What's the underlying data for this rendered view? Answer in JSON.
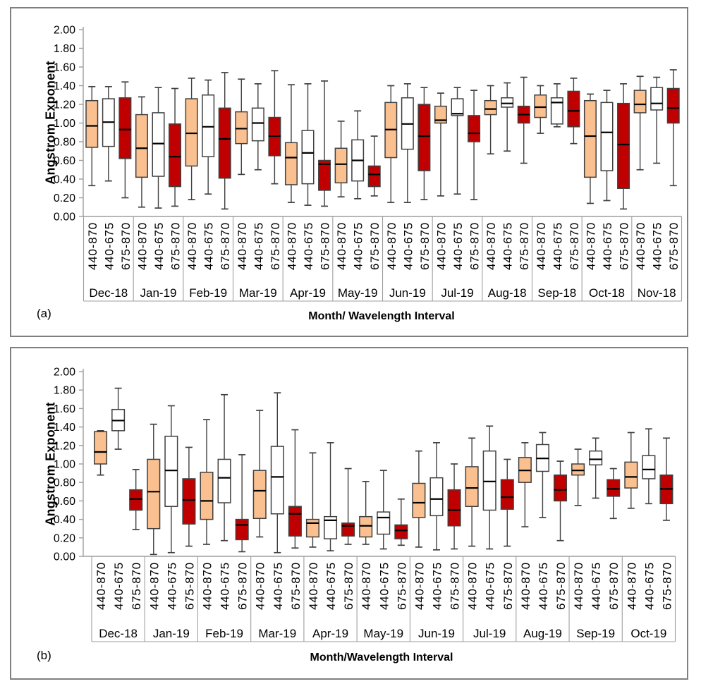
{
  "figure": {
    "background": "#FFFFFF",
    "panel_border": "#7F7F7F"
  },
  "colors": {
    "box_fill_440_870": "#FAC090",
    "box_fill_440_675": "#FFFFFF",
    "box_fill_675_870": "#C00000",
    "box_border": "#404040",
    "median_line": "#000000",
    "axis_line": "#9E9E9E",
    "text": "#000000"
  },
  "chart_data": [
    {
      "type": "boxplot",
      "panel_label": "(a)",
      "ylabel": "Angstrom Exponent",
      "xlabel": "Month/ Wavelength Interval",
      "ylim": [
        0,
        2
      ],
      "ytick_step": 0.2,
      "grid": "off",
      "yticks": [
        "2.00",
        "1.80",
        "1.60",
        "1.40",
        "1.20",
        "1.00",
        "0.80",
        "0.60",
        "0.40",
        "0.20",
        "0.00"
      ],
      "intervals": [
        "440-870",
        "440-675",
        "675-870"
      ],
      "months": [
        "Dec-18",
        "Jan-19",
        "Feb-19",
        "Mar-19",
        "Apr-19",
        "May-19",
        "Jun-19",
        "Jul-19",
        "Aug-18",
        "Sep-18",
        "Oct-18",
        "Nov-18"
      ],
      "boxes": [
        {
          "month": "Dec-18",
          "interval": "440-870",
          "low": 0.33,
          "q1": 0.74,
          "median": 0.97,
          "q3": 1.24,
          "high": 1.39
        },
        {
          "month": "Dec-18",
          "interval": "440-675",
          "low": 0.38,
          "q1": 0.75,
          "median": 1.01,
          "q3": 1.26,
          "high": 1.39
        },
        {
          "month": "Dec-18",
          "interval": "675-870",
          "low": 0.2,
          "q1": 0.62,
          "median": 0.93,
          "q3": 1.27,
          "high": 1.44
        },
        {
          "month": "Jan-19",
          "interval": "440-870",
          "low": 0.1,
          "q1": 0.42,
          "median": 0.73,
          "q3": 1.09,
          "high": 1.28
        },
        {
          "month": "Jan-19",
          "interval": "440-675",
          "low": 0.09,
          "q1": 0.43,
          "median": 0.78,
          "q3": 1.11,
          "high": 1.38
        },
        {
          "month": "Jan-19",
          "interval": "675-870",
          "low": 0.11,
          "q1": 0.32,
          "median": 0.64,
          "q3": 0.99,
          "high": 1.37
        },
        {
          "month": "Feb-19",
          "interval": "440-870",
          "low": 0.18,
          "q1": 0.54,
          "median": 0.89,
          "q3": 1.26,
          "high": 1.48
        },
        {
          "month": "Feb-19",
          "interval": "440-675",
          "low": 0.24,
          "q1": 0.64,
          "median": 0.96,
          "q3": 1.3,
          "high": 1.46
        },
        {
          "month": "Feb-19",
          "interval": "675-870",
          "low": 0.08,
          "q1": 0.41,
          "median": 0.83,
          "q3": 1.16,
          "high": 1.54
        },
        {
          "month": "Mar-19",
          "interval": "440-870",
          "low": 0.45,
          "q1": 0.78,
          "median": 0.94,
          "q3": 1.12,
          "high": 1.47
        },
        {
          "month": "Mar-19",
          "interval": "440-675",
          "low": 0.5,
          "q1": 0.81,
          "median": 1.0,
          "q3": 1.16,
          "high": 1.42
        },
        {
          "month": "Mar-19",
          "interval": "675-870",
          "low": 0.35,
          "q1": 0.65,
          "median": 0.86,
          "q3": 1.06,
          "high": 1.56
        },
        {
          "month": "Apr-19",
          "interval": "440-870",
          "low": 0.15,
          "q1": 0.34,
          "median": 0.63,
          "q3": 0.79,
          "high": 1.41
        },
        {
          "month": "Apr-19",
          "interval": "440-675",
          "low": 0.12,
          "q1": 0.35,
          "median": 0.68,
          "q3": 0.92,
          "high": 1.42
        },
        {
          "month": "Apr-19",
          "interval": "675-870",
          "low": 0.11,
          "q1": 0.28,
          "median": 0.56,
          "q3": 0.6,
          "high": 1.45
        },
        {
          "month": "May-19",
          "interval": "440-870",
          "low": 0.21,
          "q1": 0.36,
          "median": 0.56,
          "q3": 0.73,
          "high": 1.02
        },
        {
          "month": "May-19",
          "interval": "440-675",
          "low": 0.19,
          "q1": 0.38,
          "median": 0.6,
          "q3": 0.82,
          "high": 1.13
        },
        {
          "month": "May-19",
          "interval": "675-870",
          "low": 0.22,
          "q1": 0.32,
          "median": 0.45,
          "q3": 0.54,
          "high": 0.86
        },
        {
          "month": "Jun-19",
          "interval": "440-870",
          "low": 0.15,
          "q1": 0.63,
          "median": 0.93,
          "q3": 1.22,
          "high": 1.4
        },
        {
          "month": "Jun-19",
          "interval": "440-675",
          "low": 0.15,
          "q1": 0.72,
          "median": 0.99,
          "q3": 1.27,
          "high": 1.42
        },
        {
          "month": "Jun-19",
          "interval": "675-870",
          "low": 0.18,
          "q1": 0.49,
          "median": 0.86,
          "q3": 1.2,
          "high": 1.38
        },
        {
          "month": "Jul-19",
          "interval": "440-870",
          "low": 0.22,
          "q1": 1.0,
          "median": 1.03,
          "q3": 1.18,
          "high": 1.32
        },
        {
          "month": "Jul-19",
          "interval": "440-675",
          "low": 0.24,
          "q1": 1.08,
          "median": 1.1,
          "q3": 1.26,
          "high": 1.38
        },
        {
          "month": "Jul-19",
          "interval": "675-870",
          "low": 0.18,
          "q1": 0.8,
          "median": 0.89,
          "q3": 1.08,
          "high": 1.35
        },
        {
          "month": "Aug-18",
          "interval": "440-870",
          "low": 0.67,
          "q1": 1.09,
          "median": 1.15,
          "q3": 1.24,
          "high": 1.4
        },
        {
          "month": "Aug-18",
          "interval": "440-675",
          "low": 0.7,
          "q1": 1.17,
          "median": 1.21,
          "q3": 1.27,
          "high": 1.43
        },
        {
          "month": "Aug-18",
          "interval": "675-870",
          "low": 0.57,
          "q1": 1.0,
          "median": 1.09,
          "q3": 1.18,
          "high": 1.49
        },
        {
          "month": "Sep-18",
          "interval": "440-870",
          "low": 0.89,
          "q1": 1.06,
          "median": 1.17,
          "q3": 1.3,
          "high": 1.4
        },
        {
          "month": "Sep-18",
          "interval": "440-675",
          "low": 0.96,
          "q1": 0.99,
          "median": 1.22,
          "q3": 1.27,
          "high": 1.42
        },
        {
          "month": "Sep-18",
          "interval": "675-870",
          "low": 0.78,
          "q1": 0.96,
          "median": 1.13,
          "q3": 1.34,
          "high": 1.48
        },
        {
          "month": "Oct-18",
          "interval": "440-870",
          "low": 0.14,
          "q1": 0.42,
          "median": 0.86,
          "q3": 1.24,
          "high": 1.31
        },
        {
          "month": "Oct-18",
          "interval": "440-675",
          "low": 0.17,
          "q1": 0.49,
          "median": 0.9,
          "q3": 1.22,
          "high": 1.35
        },
        {
          "month": "Oct-18",
          "interval": "675-870",
          "low": 0.08,
          "q1": 0.3,
          "median": 0.77,
          "q3": 1.21,
          "high": 1.42
        },
        {
          "month": "Nov-18",
          "interval": "440-870",
          "low": 0.5,
          "q1": 1.11,
          "median": 1.2,
          "q3": 1.35,
          "high": 1.5
        },
        {
          "month": "Nov-18",
          "interval": "440-675",
          "low": 0.57,
          "q1": 1.14,
          "median": 1.21,
          "q3": 1.38,
          "high": 1.49
        },
        {
          "month": "Nov-18",
          "interval": "675-870",
          "low": 0.33,
          "q1": 1.0,
          "median": 1.16,
          "q3": 1.37,
          "high": 1.57
        }
      ]
    },
    {
      "type": "boxplot",
      "panel_label": "(b)",
      "ylabel": "Angstrom Exponent",
      "xlabel": "Month/Wavelength Interval",
      "ylim": [
        0,
        2
      ],
      "ytick_step": 0.2,
      "grid": "off",
      "yticks": [
        "2.00",
        "1.80",
        "1.60",
        "1.40",
        "1.20",
        "1.00",
        "0.80",
        "0.60",
        "0.40",
        "0.20",
        "0.00"
      ],
      "intervals": [
        "440-870",
        "440-675",
        "675-870"
      ],
      "months": [
        "Dec-18",
        "Jan-19",
        "Feb-19",
        "Mar-19",
        "Apr-19",
        "May-19",
        "Jun-19",
        "Jul-19",
        "Aug-19",
        "Sep-19",
        "Oct-19"
      ],
      "boxes": [
        {
          "month": "Dec-18",
          "interval": "440-870",
          "low": 0.88,
          "q1": 1.0,
          "median": 1.13,
          "q3": 1.35,
          "high": 1.36
        },
        {
          "month": "Dec-18",
          "interval": "440-675",
          "low": 1.16,
          "q1": 1.36,
          "median": 1.47,
          "q3": 1.59,
          "high": 1.82
        },
        {
          "month": "Dec-18",
          "interval": "675-870",
          "low": 0.29,
          "q1": 0.5,
          "median": 0.62,
          "q3": 0.72,
          "high": 0.94
        },
        {
          "month": "Jan-19",
          "interval": "440-870",
          "low": 0.02,
          "q1": 0.3,
          "median": 0.7,
          "q3": 1.05,
          "high": 1.43
        },
        {
          "month": "Jan-19",
          "interval": "440-675",
          "low": 0.04,
          "q1": 0.54,
          "median": 0.93,
          "q3": 1.3,
          "high": 1.63
        },
        {
          "month": "Jan-19",
          "interval": "675-870",
          "low": 0.11,
          "q1": 0.35,
          "median": 0.61,
          "q3": 0.84,
          "high": 1.18
        },
        {
          "month": "Feb-19",
          "interval": "440-870",
          "low": 0.13,
          "q1": 0.4,
          "median": 0.6,
          "q3": 0.91,
          "high": 1.48
        },
        {
          "month": "Feb-19",
          "interval": "440-675",
          "low": 0.17,
          "q1": 0.58,
          "median": 0.85,
          "q3": 1.05,
          "high": 1.75
        },
        {
          "month": "Feb-19",
          "interval": "675-870",
          "low": 0.05,
          "q1": 0.18,
          "median": 0.34,
          "q3": 0.4,
          "high": 1.1
        },
        {
          "month": "Mar-19",
          "interval": "440-870",
          "low": 0.21,
          "q1": 0.41,
          "median": 0.71,
          "q3": 0.93,
          "high": 1.58
        },
        {
          "month": "Mar-19",
          "interval": "440-675",
          "low": 0.04,
          "q1": 0.46,
          "median": 0.86,
          "q3": 1.19,
          "high": 1.77
        },
        {
          "month": "Mar-19",
          "interval": "675-870",
          "low": 0.09,
          "q1": 0.22,
          "median": 0.46,
          "q3": 0.54,
          "high": 1.37
        },
        {
          "month": "Apr-19",
          "interval": "440-870",
          "low": 0.1,
          "q1": 0.21,
          "median": 0.36,
          "q3": 0.4,
          "high": 1.12
        },
        {
          "month": "Apr-19",
          "interval": "440-675",
          "low": 0.06,
          "q1": 0.19,
          "median": 0.39,
          "q3": 0.43,
          "high": 1.23
        },
        {
          "month": "Apr-19",
          "interval": "675-870",
          "low": 0.13,
          "q1": 0.22,
          "median": 0.33,
          "q3": 0.36,
          "high": 0.95
        },
        {
          "month": "May-19",
          "interval": "440-870",
          "low": 0.13,
          "q1": 0.21,
          "median": 0.33,
          "q3": 0.43,
          "high": 0.81
        },
        {
          "month": "May-19",
          "interval": "440-675",
          "low": 0.08,
          "q1": 0.24,
          "median": 0.42,
          "q3": 0.48,
          "high": 0.93
        },
        {
          "month": "May-19",
          "interval": "675-870",
          "low": 0.12,
          "q1": 0.19,
          "median": 0.28,
          "q3": 0.34,
          "high": 0.62
        },
        {
          "month": "Jun-19",
          "interval": "440-870",
          "low": 0.1,
          "q1": 0.42,
          "median": 0.58,
          "q3": 0.79,
          "high": 1.14
        },
        {
          "month": "Jun-19",
          "interval": "440-675",
          "low": 0.07,
          "q1": 0.44,
          "median": 0.62,
          "q3": 0.85,
          "high": 1.23
        },
        {
          "month": "Jun-19",
          "interval": "675-870",
          "low": 0.08,
          "q1": 0.33,
          "median": 0.5,
          "q3": 0.72,
          "high": 1.0
        },
        {
          "month": "Jul-19",
          "interval": "440-870",
          "low": 0.11,
          "q1": 0.54,
          "median": 0.74,
          "q3": 0.97,
          "high": 1.28
        },
        {
          "month": "Jul-19",
          "interval": "440-675",
          "low": 0.08,
          "q1": 0.5,
          "median": 0.81,
          "q3": 1.14,
          "high": 1.41
        },
        {
          "month": "Jul-19",
          "interval": "675-870",
          "low": 0.11,
          "q1": 0.51,
          "median": 0.64,
          "q3": 0.83,
          "high": 1.05
        },
        {
          "month": "Aug-19",
          "interval": "440-870",
          "low": 0.32,
          "q1": 0.8,
          "median": 0.93,
          "q3": 1.07,
          "high": 1.23
        },
        {
          "month": "Aug-19",
          "interval": "440-675",
          "low": 0.42,
          "q1": 0.92,
          "median": 1.06,
          "q3": 1.21,
          "high": 1.34
        },
        {
          "month": "Aug-19",
          "interval": "675-870",
          "low": 0.17,
          "q1": 0.6,
          "median": 0.72,
          "q3": 0.88,
          "high": 1.03
        },
        {
          "month": "Sep-19",
          "interval": "440-870",
          "low": 0.55,
          "q1": 0.88,
          "median": 0.93,
          "q3": 1.0,
          "high": 1.16
        },
        {
          "month": "Sep-19",
          "interval": "440-675",
          "low": 0.63,
          "q1": 0.99,
          "median": 1.05,
          "q3": 1.14,
          "high": 1.28
        },
        {
          "month": "Sep-19",
          "interval": "675-870",
          "low": 0.41,
          "q1": 0.65,
          "median": 0.73,
          "q3": 0.83,
          "high": 0.95
        },
        {
          "month": "Oct-19",
          "interval": "440-870",
          "low": 0.52,
          "q1": 0.74,
          "median": 0.86,
          "q3": 1.02,
          "high": 1.34
        },
        {
          "month": "Oct-19",
          "interval": "440-675",
          "low": 0.57,
          "q1": 0.84,
          "median": 0.94,
          "q3": 1.09,
          "high": 1.38
        },
        {
          "month": "Oct-19",
          "interval": "675-870",
          "low": 0.39,
          "q1": 0.57,
          "median": 0.73,
          "q3": 0.88,
          "high": 1.28
        }
      ]
    }
  ]
}
